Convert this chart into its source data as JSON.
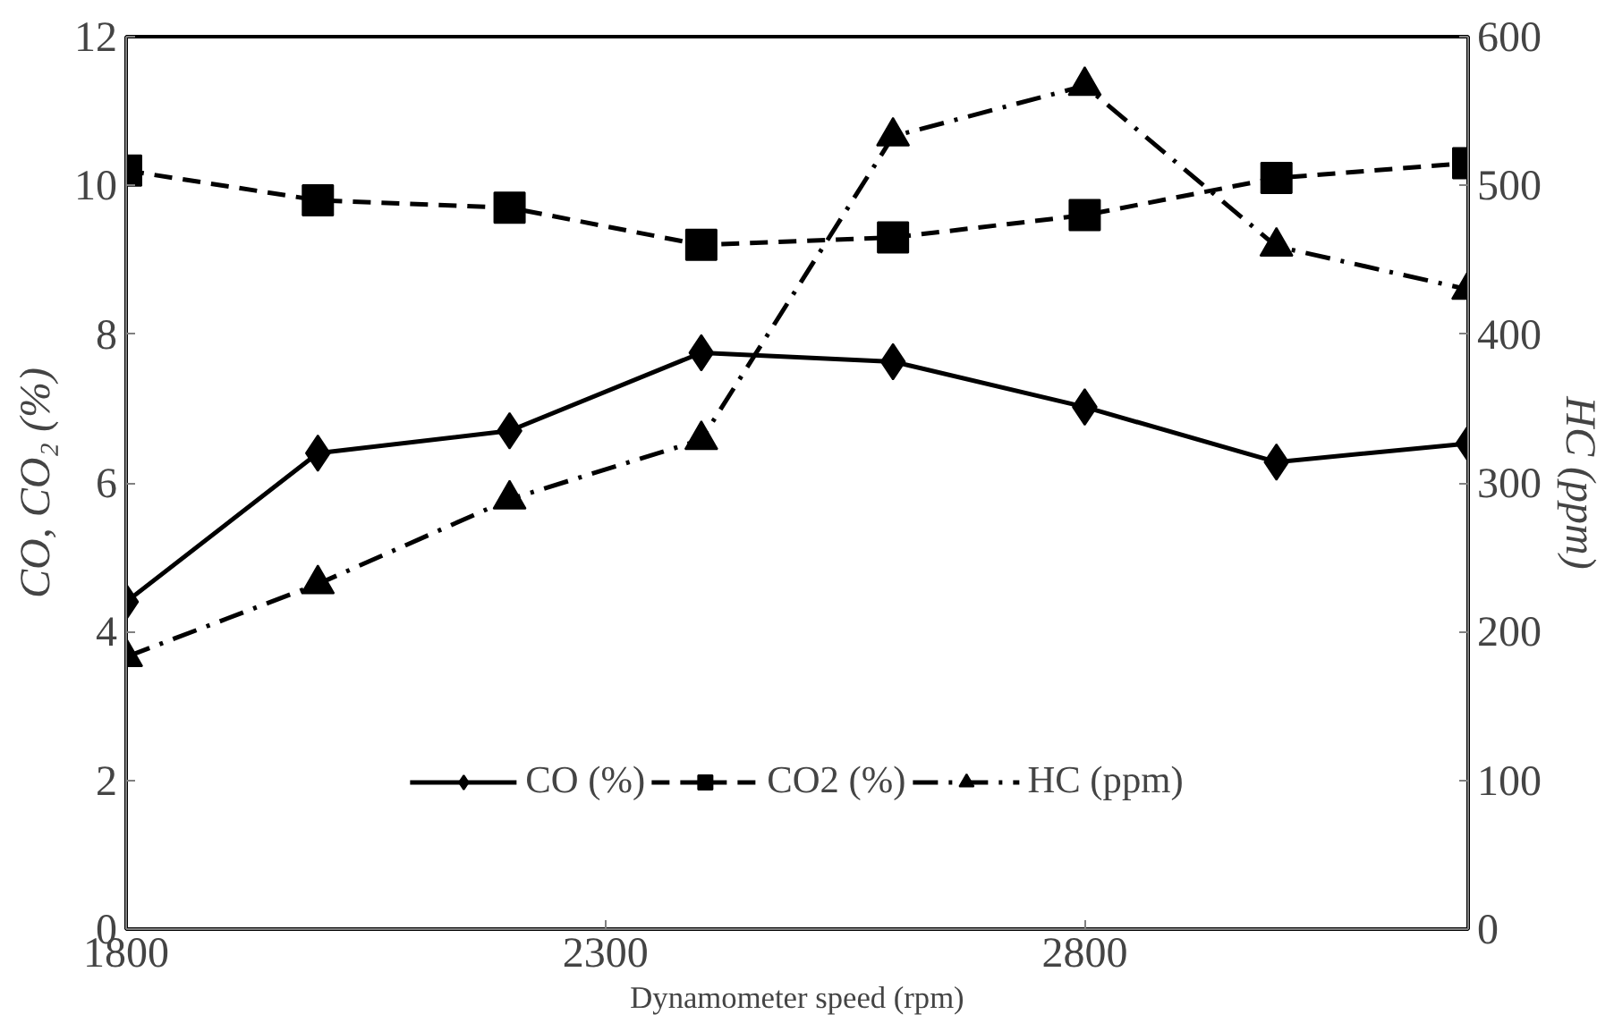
{
  "chart_data": {
    "type": "line",
    "xlabel": "Dynamometer speed (rpm)",
    "ylabel": "CO, CO₂ (%)",
    "y2label": "HC (ppm)",
    "x": [
      1800,
      2000,
      2200,
      2400,
      2600,
      2800,
      3000,
      3200
    ],
    "xlim": [
      1800,
      3200
    ],
    "xticks": [
      1800,
      2300,
      2800
    ],
    "ylim": [
      0,
      12
    ],
    "yticks": [
      0,
      2,
      4,
      6,
      8,
      10,
      12
    ],
    "y2lim": [
      0,
      600
    ],
    "y2ticks": [
      0,
      100,
      200,
      300,
      400,
      500,
      600
    ],
    "grid": false,
    "legend": "bottom",
    "series": [
      {
        "name": "CO (%)",
        "color": "#000000",
        "marker": "diamond",
        "line_style": "solid",
        "values": [
          4.4,
          6.4,
          6.7,
          7.75,
          7.63,
          7.02,
          6.28,
          6.53
        ]
      },
      {
        "name": "CO2 (%)",
        "color": "#000000",
        "marker": "square",
        "line_style": "dashed",
        "values": [
          10.2,
          9.8,
          9.7,
          9.2,
          9.3,
          9.6,
          10.1,
          10.3
        ]
      },
      {
        "name": "HC (ppm)",
        "color": "#000000",
        "marker": "triangle",
        "line_style": "dashdot",
        "axis": "y2",
        "values": [
          183,
          232,
          289,
          329,
          533,
          567,
          459,
          430
        ]
      }
    ]
  }
}
